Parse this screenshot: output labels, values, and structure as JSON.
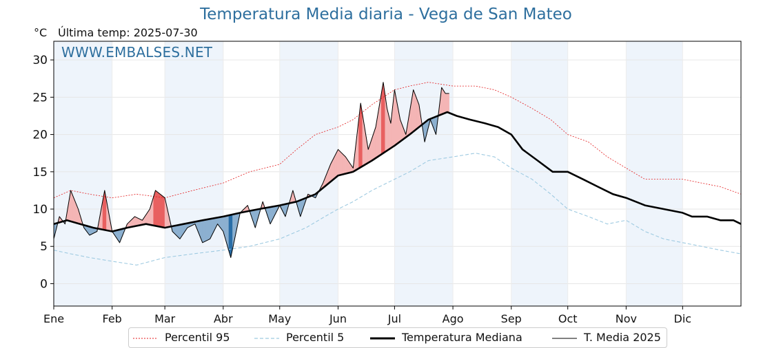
{
  "header": {
    "title": "Temperatura Media diaria - Vega de San Mateo",
    "unit": "°C",
    "last_temp_label": "Última temp: 2025-07-30",
    "watermark": "WWW.EMBALSES.NET"
  },
  "colors": {
    "p95": "#e31a1c",
    "p5": "#9ecae1",
    "median": "#000000",
    "year": "#000000",
    "above_fill": "#f4b5b5",
    "above_fill_strong": "#e86060",
    "below_fill": "#8cb0d0",
    "below_fill_strong": "#2a6ea8",
    "band": "#eef4fb",
    "title": "#2e6f9e"
  },
  "legend": {
    "p95": "Percentil 95",
    "p5": "Percentil 5",
    "median": "Temperatura Mediana",
    "year": "T. Media 2025"
  },
  "chart_data": {
    "type": "line",
    "x_unit": "day_of_year",
    "xlim": [
      1,
      366
    ],
    "ylim": [
      -3,
      32.5
    ],
    "yticks": [
      0,
      5,
      10,
      15,
      20,
      25,
      30
    ],
    "month_ticks": [
      {
        "label": "Ene",
        "day": 1
      },
      {
        "label": "Feb",
        "day": 32
      },
      {
        "label": "Mar",
        "day": 60
      },
      {
        "label": "Abr",
        "day": 91
      },
      {
        "label": "May",
        "day": 121
      },
      {
        "label": "Jun",
        "day": 152
      },
      {
        "label": "Jul",
        "day": 182
      },
      {
        "label": "Ago",
        "day": 213
      },
      {
        "label": "Sep",
        "day": 244
      },
      {
        "label": "Oct",
        "day": 274
      },
      {
        "label": "Nov",
        "day": 305
      },
      {
        "label": "Dic",
        "day": 335
      }
    ],
    "shaded_months": [
      "Ene",
      "Mar",
      "May",
      "Jul",
      "Sep",
      "Nov"
    ],
    "grid": true,
    "series": [
      {
        "name": "Percentil 95",
        "style": "dotted",
        "x": [
          1,
          10,
          20,
          32,
          45,
          60,
          75,
          91,
          105,
          121,
          130,
          140,
          152,
          160,
          170,
          182,
          190,
          200,
          213,
          225,
          235,
          244,
          255,
          265,
          274,
          285,
          295,
          305,
          315,
          325,
          335,
          345,
          355,
          366
        ],
        "y": [
          11.5,
          12.5,
          12,
          11.5,
          12,
          11.5,
          12.5,
          13.5,
          15,
          16,
          18,
          20,
          21,
          22,
          24,
          26,
          26.5,
          27,
          26.5,
          26.5,
          26,
          25,
          23.5,
          22,
          20,
          19,
          17,
          15.5,
          14,
          14,
          14,
          13.5,
          13,
          12
        ]
      },
      {
        "name": "Percentil 5",
        "style": "dashed",
        "x": [
          1,
          10,
          20,
          32,
          45,
          60,
          75,
          91,
          105,
          121,
          135,
          145,
          152,
          160,
          170,
          182,
          190,
          200,
          213,
          225,
          235,
          244,
          255,
          265,
          274,
          285,
          295,
          305,
          315,
          325,
          335,
          345,
          355,
          366
        ],
        "y": [
          4.5,
          4,
          3.5,
          3,
          2.5,
          3.5,
          4,
          4.5,
          5,
          6,
          7.5,
          9,
          10,
          11,
          12.5,
          14,
          15,
          16.5,
          17,
          17.5,
          17,
          15.5,
          14,
          12,
          10,
          9,
          8,
          8.5,
          7,
          6,
          5.5,
          5,
          4.5,
          4
        ]
      },
      {
        "name": "Temperatura Mediana",
        "style": "thick",
        "x": [
          1,
          8,
          15,
          22,
          32,
          40,
          50,
          60,
          70,
          80,
          91,
          100,
          110,
          121,
          130,
          140,
          152,
          160,
          170,
          182,
          190,
          200,
          210,
          215,
          222,
          230,
          237,
          244,
          250,
          258,
          266,
          274,
          282,
          290,
          298,
          305,
          315,
          325,
          335,
          340,
          348,
          355,
          362,
          366
        ],
        "y": [
          8,
          8.5,
          8,
          7.5,
          7,
          7.5,
          8,
          7.5,
          8,
          8.5,
          9,
          9.5,
          10,
          10.5,
          11,
          12,
          14.5,
          15,
          16.5,
          18.5,
          20,
          22,
          23,
          22.5,
          22,
          21.5,
          21,
          20,
          18,
          16.5,
          15,
          15,
          14,
          13,
          12,
          11.5,
          10.5,
          10,
          9.5,
          9,
          9,
          8.5,
          8.5,
          8
        ]
      },
      {
        "name": "T. Media 2025",
        "style": "thin",
        "x": [
          1,
          4,
          7,
          10,
          14,
          17,
          20,
          24,
          28,
          32,
          36,
          40,
          44,
          48,
          52,
          55,
          60,
          64,
          68,
          72,
          76,
          80,
          84,
          88,
          91,
          95,
          100,
          104,
          108,
          112,
          116,
          121,
          124,
          128,
          132,
          136,
          140,
          144,
          148,
          152,
          156,
          160,
          164,
          168,
          172,
          176,
          178,
          180,
          182,
          185,
          188,
          192,
          195,
          198,
          201,
          204,
          207,
          209,
          211
        ],
        "y": [
          6,
          9,
          8,
          12.5,
          10,
          7.5,
          6.5,
          7,
          12.5,
          7,
          5.5,
          8,
          9,
          8.5,
          10,
          12.5,
          11.5,
          7,
          6,
          7.5,
          8,
          5.5,
          6,
          8,
          7,
          3.5,
          9.5,
          10.5,
          7.5,
          11,
          8,
          10.5,
          9,
          12.5,
          9,
          12,
          11.5,
          13.5,
          16,
          18,
          17,
          15.5,
          24.2,
          18,
          21,
          27,
          23.5,
          21.5,
          26,
          22,
          20,
          26,
          24,
          19,
          22,
          20,
          26.3,
          25.5,
          25.5
        ]
      }
    ]
  }
}
